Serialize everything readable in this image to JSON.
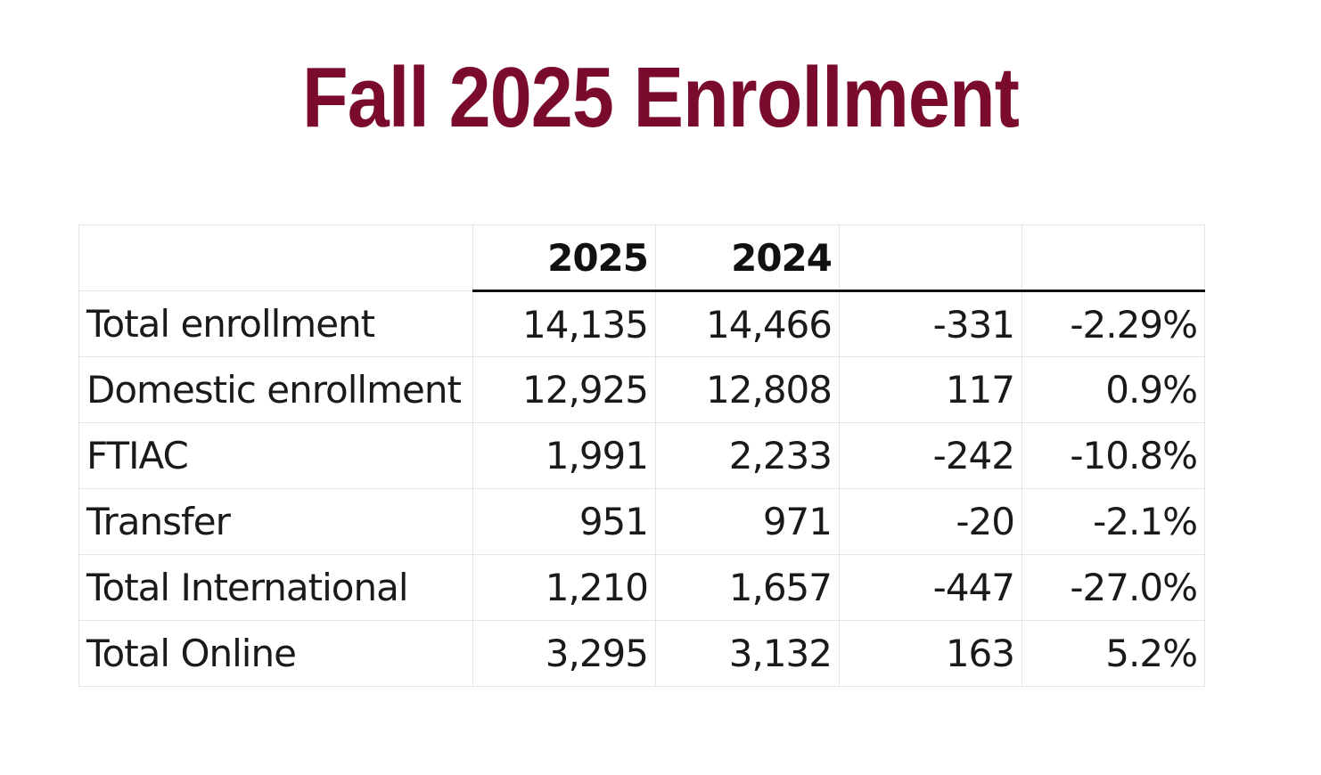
{
  "title": "Fall 2025 Enrollment",
  "table": {
    "headers": [
      "",
      "2025",
      "2024",
      "",
      ""
    ],
    "rows": [
      {
        "label": "Total enrollment",
        "y2025": "14,135",
        "y2024": "14,466",
        "change": "-331",
        "pct": "-2.29%"
      },
      {
        "label": "Domestic enrollment",
        "y2025": "12,925",
        "y2024": "12,808",
        "change": "117",
        "pct": "0.9%"
      },
      {
        "label": "FTIAC",
        "y2025": "1,991",
        "y2024": "2,233",
        "change": "-242",
        "pct": "-10.8%"
      },
      {
        "label": "Transfer",
        "y2025": "951",
        "y2024": "971",
        "change": "-20",
        "pct": "-2.1%"
      },
      {
        "label": "Total International",
        "y2025": "1,210",
        "y2024": "1,657",
        "change": "-447",
        "pct": "-27.0%"
      },
      {
        "label": "Total Online",
        "y2025": "3,295",
        "y2024": "3,132",
        "change": "163",
        "pct": "5.2%"
      }
    ]
  },
  "colors": {
    "title": "#7a0b2c",
    "text": "#1a1a1a",
    "grid": "#e4e4e4",
    "header_rule": "#111111"
  }
}
